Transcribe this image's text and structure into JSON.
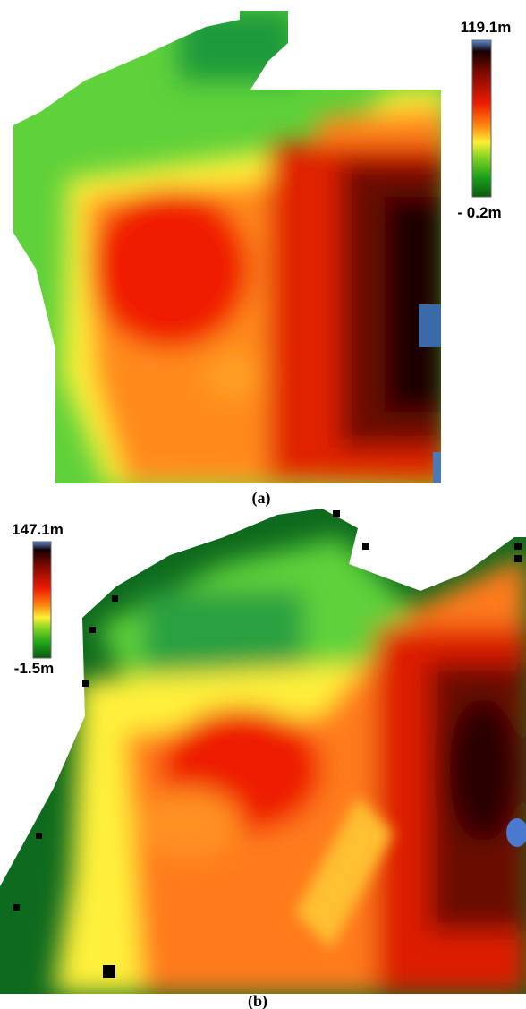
{
  "panels": [
    {
      "colorbar": {
        "max": "119.1m",
        "min": "- 0.2m"
      },
      "caption": "(a)"
    },
    {
      "colorbar": {
        "max": "147.1m",
        "min": "-1.5m"
      },
      "caption": "(b)"
    }
  ]
}
